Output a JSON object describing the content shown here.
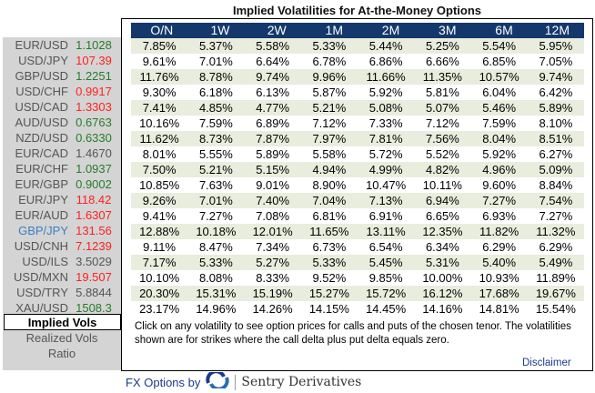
{
  "title": "Implied Volatilities for At-the-Money Options",
  "colors": {
    "up": "#2a7a2a",
    "down": "#ff2020",
    "flat": "#555555",
    "header": "#14386b",
    "highlight": "#3a7fc0"
  },
  "tenors": [
    "O/N",
    "1W",
    "2W",
    "1M",
    "2M",
    "3M",
    "6M",
    "12M"
  ],
  "rows": [
    {
      "pair": "EUR/USD",
      "spot": "1.1028",
      "dir": "up",
      "vols": [
        "7.85%",
        "5.37%",
        "5.58%",
        "5.33%",
        "5.44%",
        "5.25%",
        "5.54%",
        "5.95%"
      ]
    },
    {
      "pair": "USD/JPY",
      "spot": "107.39",
      "dir": "down",
      "vols": [
        "9.61%",
        "7.01%",
        "6.64%",
        "6.78%",
        "6.86%",
        "6.66%",
        "6.85%",
        "7.05%"
      ]
    },
    {
      "pair": "GBP/USD",
      "spot": "1.2251",
      "dir": "up",
      "vols": [
        "11.76%",
        "8.78%",
        "9.74%",
        "9.96%",
        "11.66%",
        "11.35%",
        "10.57%",
        "9.74%"
      ]
    },
    {
      "pair": "USD/CHF",
      "spot": "0.9917",
      "dir": "down",
      "vols": [
        "9.30%",
        "6.18%",
        "6.13%",
        "5.87%",
        "5.92%",
        "5.81%",
        "6.04%",
        "6.42%"
      ]
    },
    {
      "pair": "USD/CAD",
      "spot": "1.3303",
      "dir": "down",
      "vols": [
        "7.41%",
        "4.85%",
        "4.77%",
        "5.21%",
        "5.08%",
        "5.07%",
        "5.46%",
        "5.89%"
      ]
    },
    {
      "pair": "AUD/USD",
      "spot": "0.6763",
      "dir": "up",
      "vols": [
        "10.16%",
        "7.59%",
        "6.89%",
        "7.12%",
        "7.33%",
        "7.12%",
        "7.59%",
        "8.10%"
      ]
    },
    {
      "pair": "NZD/USD",
      "spot": "0.6330",
      "dir": "up",
      "vols": [
        "11.62%",
        "8.73%",
        "7.87%",
        "7.97%",
        "7.81%",
        "7.56%",
        "8.04%",
        "8.51%"
      ]
    },
    {
      "pair": "EUR/CAD",
      "spot": "1.4670",
      "dir": "flat",
      "vols": [
        "8.01%",
        "5.55%",
        "5.89%",
        "5.58%",
        "5.72%",
        "5.52%",
        "5.92%",
        "6.27%"
      ]
    },
    {
      "pair": "EUR/CHF",
      "spot": "1.0937",
      "dir": "up",
      "vols": [
        "7.50%",
        "5.21%",
        "5.15%",
        "4.94%",
        "4.99%",
        "4.82%",
        "4.96%",
        "5.09%"
      ]
    },
    {
      "pair": "EUR/GBP",
      "spot": "0.9002",
      "dir": "up",
      "vols": [
        "10.85%",
        "7.63%",
        "9.01%",
        "8.90%",
        "10.47%",
        "10.11%",
        "9.60%",
        "8.84%"
      ]
    },
    {
      "pair": "EUR/JPY",
      "spot": "118.42",
      "dir": "down",
      "vols": [
        "9.26%",
        "7.01%",
        "7.40%",
        "7.04%",
        "7.13%",
        "6.94%",
        "7.27%",
        "7.54%"
      ]
    },
    {
      "pair": "EUR/AUD",
      "spot": "1.6307",
      "dir": "down",
      "vols": [
        "9.41%",
        "7.27%",
        "7.08%",
        "6.81%",
        "6.91%",
        "6.65%",
        "6.93%",
        "7.27%"
      ]
    },
    {
      "pair": "GBP/JPY",
      "spot": "131.56",
      "dir": "down",
      "highlight": true,
      "vols": [
        "12.88%",
        "10.18%",
        "12.01%",
        "11.65%",
        "13.11%",
        "12.35%",
        "11.82%",
        "11.32%"
      ]
    },
    {
      "pair": "USD/CNH",
      "spot": "7.1239",
      "dir": "down",
      "vols": [
        "9.11%",
        "8.47%",
        "7.34%",
        "6.73%",
        "6.54%",
        "6.34%",
        "6.29%",
        "6.29%"
      ]
    },
    {
      "pair": "USD/ILS",
      "spot": "3.5029",
      "dir": "flat",
      "vols": [
        "7.17%",
        "5.33%",
        "5.27%",
        "5.33%",
        "5.45%",
        "5.31%",
        "5.40%",
        "5.49%"
      ]
    },
    {
      "pair": "USD/MXN",
      "spot": "19.507",
      "dir": "down",
      "vols": [
        "10.10%",
        "8.08%",
        "8.33%",
        "9.52%",
        "9.85%",
        "10.00%",
        "10.93%",
        "11.89%"
      ]
    },
    {
      "pair": "USD/TRY",
      "spot": "5.8844",
      "dir": "flat",
      "vols": [
        "20.30%",
        "15.31%",
        "15.19%",
        "15.27%",
        "15.72%",
        "16.12%",
        "17.68%",
        "19.67%"
      ]
    },
    {
      "pair": "XAU/USD",
      "spot": "1508.3",
      "dir": "up",
      "vols": [
        "23.17%",
        "14.96%",
        "14.26%",
        "14.15%",
        "14.45%",
        "14.16%",
        "14.81%",
        "15.54%"
      ]
    }
  ],
  "tabs": [
    "Implied Vols",
    "Realized Vols",
    "Ratio"
  ],
  "note": "Click on any volatility to see option prices for calls and puts of the chosen tenor. The volatilities shown are for strikes where the call delta plus put delta equals zero.",
  "disclaimer": "Disclaimer",
  "footer": {
    "by": "FX Options by",
    "brand": "Sentry Derivatives"
  }
}
